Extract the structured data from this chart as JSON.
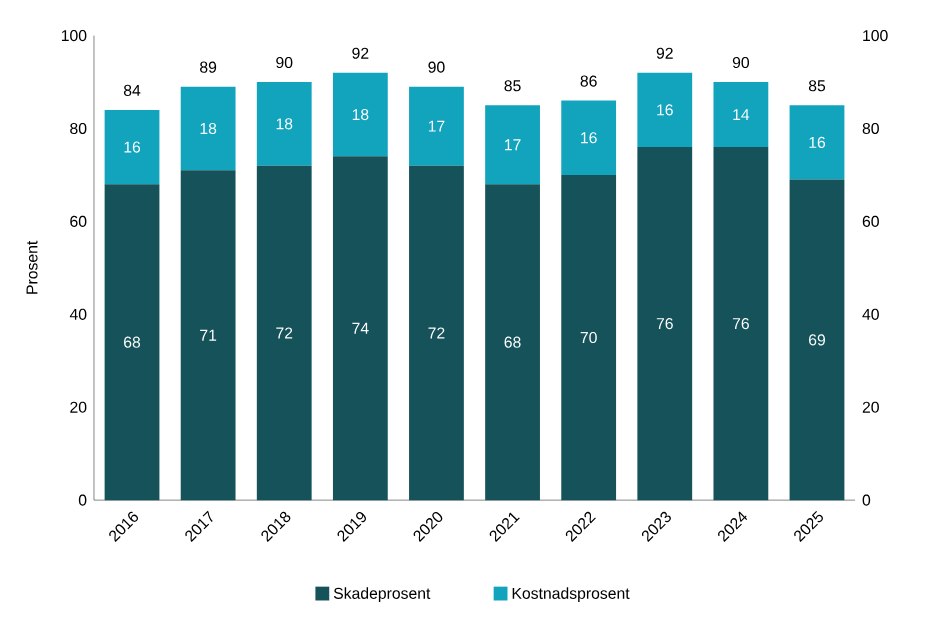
{
  "chart_data": {
    "type": "bar",
    "stacked": true,
    "ylabel": "Prosent",
    "categories": [
      "2016",
      "2017",
      "2018",
      "2019",
      "2020",
      "2021",
      "2022",
      "2023",
      "2024",
      "2025"
    ],
    "series": [
      {
        "name": "Skadeprosent",
        "color": "#16525a",
        "values": [
          68,
          71,
          72,
          74,
          72,
          68,
          70,
          76,
          76,
          69
        ]
      },
      {
        "name": "Kostnadsprosent",
        "color": "#12a3bd",
        "values": [
          16,
          18,
          18,
          18,
          17,
          17,
          16,
          16,
          14,
          16
        ]
      }
    ],
    "totals": [
      "84",
      "89",
      "90",
      "92",
      "90",
      "85",
      "86",
      "92",
      "90",
      "85"
    ],
    "data_labels": true,
    "ylim": [
      0,
      100
    ],
    "yticks": [
      0,
      20,
      40,
      60,
      80,
      100
    ],
    "y2lim": [
      0,
      100
    ],
    "y2ticks": [
      0,
      20,
      40,
      60,
      80,
      100
    ],
    "grid": false,
    "legend": "bottom"
  }
}
